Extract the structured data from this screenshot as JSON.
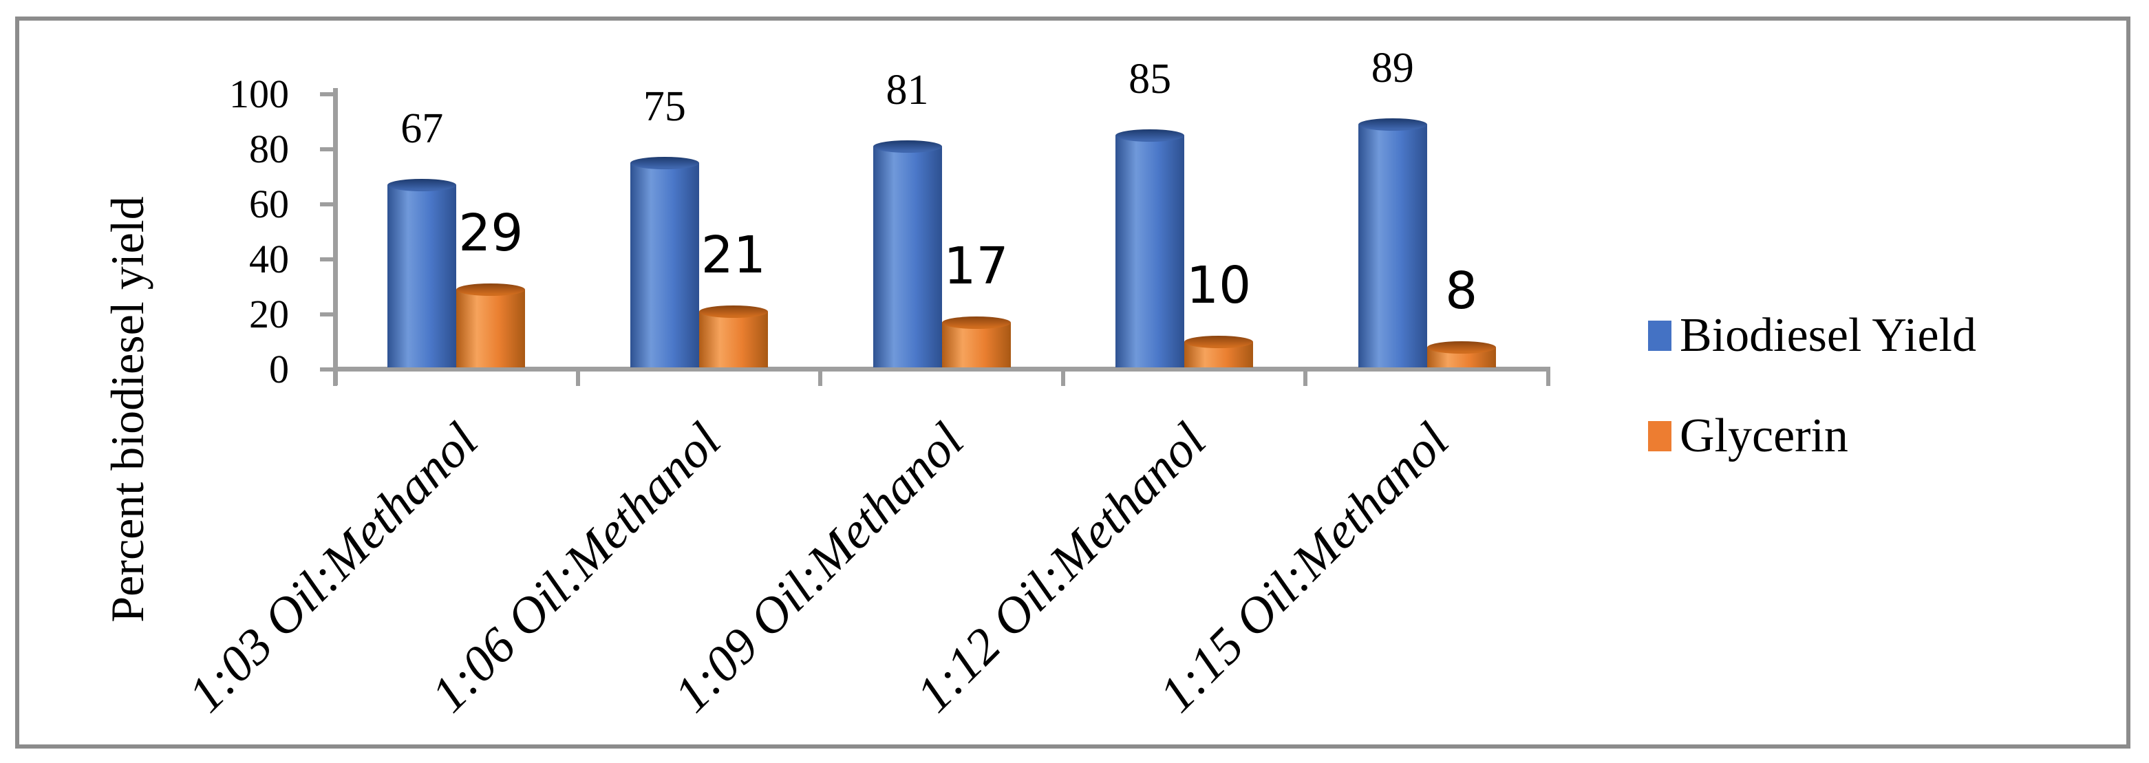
{
  "chart_data": {
    "type": "bar",
    "title": "",
    "categories": [
      "1:03 Oil:Methanol",
      "1:06 Oil:Methanol",
      "1:09 Oil:Methanol",
      "1:12 Oil:Methanol",
      "1:15 Oil:Methanol"
    ],
    "series": [
      {
        "name": "Biodiesel Yield",
        "color": "#4472C4",
        "values": [
          67,
          75,
          81,
          85,
          89
        ]
      },
      {
        "name": "Glycerin",
        "color": "#ED7D31",
        "values": [
          29,
          21,
          17,
          10,
          8
        ]
      }
    ],
    "ylabel": "Percent biodiesel yield",
    "xlabel": "",
    "ylim": [
      0,
      100
    ],
    "yticks": [
      0,
      20,
      40,
      60,
      80,
      100
    ],
    "grid": false,
    "legend_position": "right",
    "data_labels": true
  },
  "colors": {
    "axis": "#9E9E9E",
    "border": "#8C8C8C",
    "text": "#000000",
    "background": "#FFFFFF"
  }
}
